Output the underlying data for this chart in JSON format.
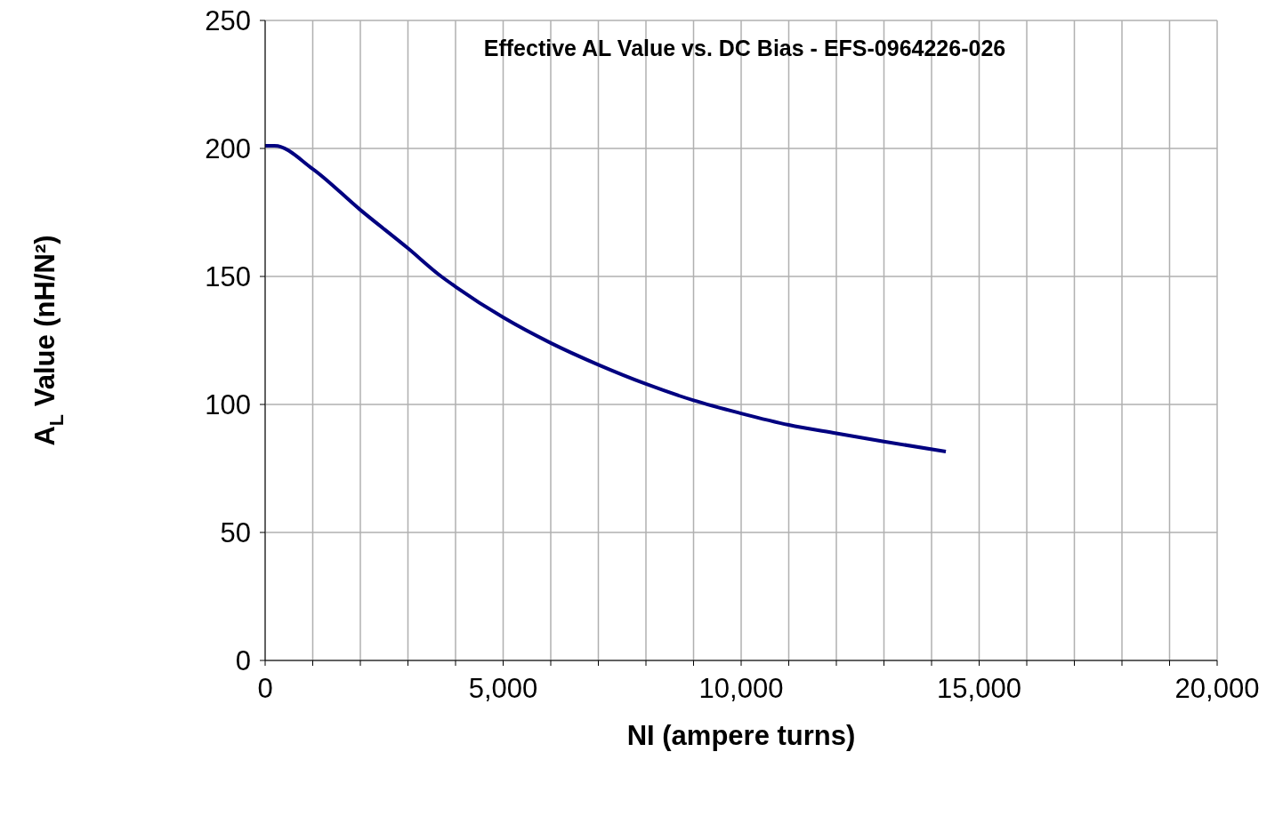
{
  "chart_data": {
    "type": "line",
    "title": "Effective AL Value vs. DC Bias - EFS-0964226-026",
    "xlabel": "NI (ampere turns)",
    "ylabel": "A$_{L}$ Value (nH/N²)",
    "x": [
      0,
      200,
      1000,
      2000,
      3000,
      3700,
      4000,
      5000,
      6000,
      7000,
      8000,
      9000,
      10000,
      11000,
      12000,
      13000,
      14300
    ],
    "series": [
      {
        "color": "#000080",
        "values": [
          201,
          201,
          192,
          176,
          161,
          150,
          146,
          134,
          124,
          115.5,
          108,
          101.6,
          96.5,
          92,
          88.7,
          85.5,
          81.6
        ]
      }
    ],
    "xlim": [
      0,
      20000
    ],
    "ylim": [
      0,
      250
    ],
    "xticks": [
      0,
      {
        "value": 1000,
        "label": null
      },
      {
        "value": 2000,
        "label": null
      },
      {
        "value": 3000,
        "label": null
      },
      {
        "value": 4000,
        "label": null
      },
      {
        "value": 5000,
        "label": "5,000"
      },
      {
        "value": 6000,
        "label": null
      },
      {
        "value": 7000,
        "label": null
      },
      {
        "value": 8000,
        "label": null
      },
      {
        "value": 9000,
        "label": null
      },
      {
        "value": 10000,
        "label": "10,000"
      },
      {
        "value": 11000,
        "label": null
      },
      {
        "value": 12000,
        "label": null
      },
      {
        "value": 13000,
        "label": null
      },
      {
        "value": 14000,
        "label": null
      },
      {
        "value": 15000,
        "label": "15,000"
      },
      {
        "value": 16000,
        "label": null
      },
      {
        "value": 17000,
        "label": null
      },
      {
        "value": 18000,
        "label": null
      },
      {
        "value": 19000,
        "label": null
      },
      {
        "value": 20000,
        "label": "20,000"
      }
    ],
    "yticks": [
      0,
      50,
      100,
      150,
      200,
      250
    ],
    "grid": true,
    "legend": false,
    "marker": "none",
    "line_style": "solid"
  }
}
